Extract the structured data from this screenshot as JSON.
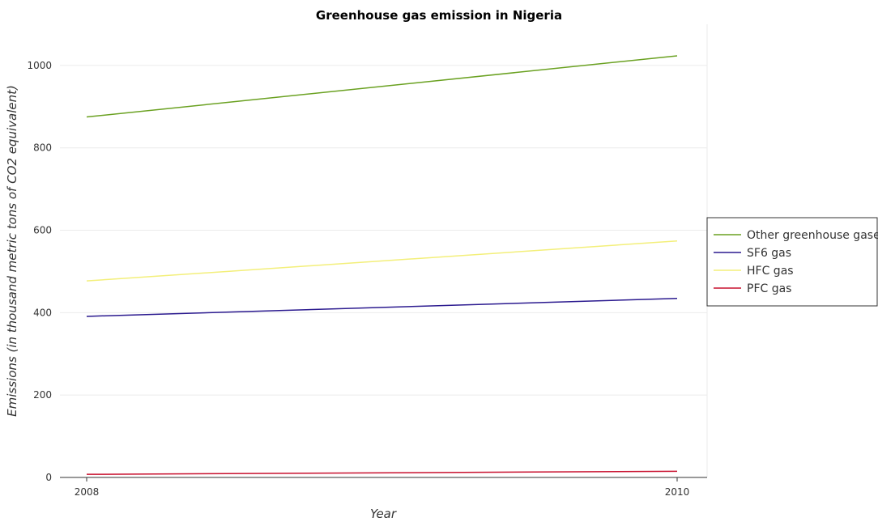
{
  "chart_data": {
    "type": "line",
    "title": "Greenhouse gas emission in Nigeria",
    "xlabel": "Year",
    "ylabel": "Emissions (in thousand metric tons of CO2 equivalent)",
    "x": [
      "2008",
      "2010"
    ],
    "ylim": [
      0,
      1100
    ],
    "yticks": [
      "0",
      "200",
      "400",
      "600",
      "800",
      "1000"
    ],
    "grid": true,
    "legend_position": "right",
    "series": [
      {
        "name": "Other greenhouse gases",
        "color": "#6aa121",
        "values": [
          875,
          1023.5
        ]
      },
      {
        "name": "SF6 gas",
        "color": "#2b1a8f",
        "values": [
          391,
          434.5
        ]
      },
      {
        "name": "HFC gas",
        "color": "#f3ef7a",
        "values": [
          477,
          574
        ]
      },
      {
        "name": "PFC gas",
        "color": "#c8102e",
        "values": [
          7.5,
          15
        ]
      }
    ]
  }
}
